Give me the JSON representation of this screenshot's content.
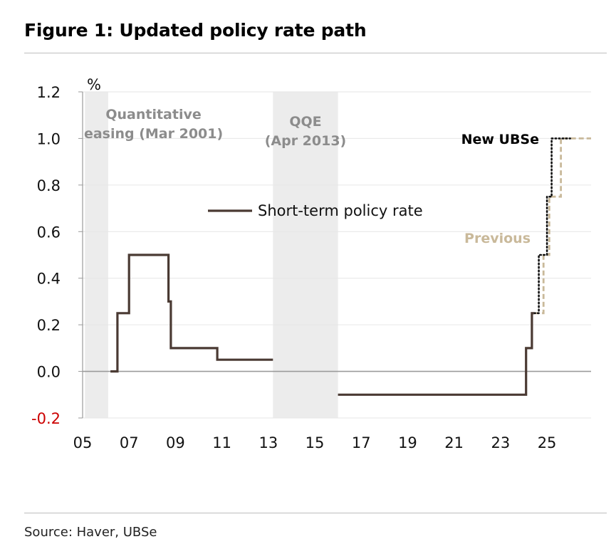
{
  "header": {
    "title": "Figure 1: Updated policy rate path"
  },
  "footer": {
    "source": "Source: Haver, UBSe"
  },
  "colors": {
    "policy": "#4a3a33",
    "new": "#111111",
    "previous": "#c9b99a",
    "shade": "#ececec",
    "negative_tick": "#cc0000"
  },
  "chart_data": {
    "type": "line",
    "title": "Figure 1: Updated policy rate path",
    "ylabel": "%",
    "xlabel": "",
    "xlim": [
      2005,
      2026.9
    ],
    "ylim": [
      -0.2,
      1.2
    ],
    "yticks": [
      1.2,
      1.0,
      0.8,
      0.6,
      0.4,
      0.2,
      0.0,
      -0.2
    ],
    "ytick_labels": [
      "1.2",
      "1.0",
      "0.8",
      "0.6",
      "0.4",
      "0.2",
      "0.0",
      "-0.2"
    ],
    "xticks": [
      2005,
      2007,
      2009,
      2011,
      2013,
      2015,
      2017,
      2019,
      2021,
      2023,
      2025
    ],
    "xtick_labels": [
      "05",
      "07",
      "09",
      "11",
      "13",
      "15",
      "17",
      "19",
      "21",
      "23",
      "25"
    ],
    "grid": true,
    "shaded_periods": [
      {
        "label_lines": [
          "Quantitative",
          "easing (Mar 2001)"
        ],
        "start": 2005.1,
        "end": 2006.1
      },
      {
        "label_lines": [
          "QQE",
          "(Apr 2013)"
        ],
        "start": 2013.2,
        "end": 2016.0
      }
    ],
    "legend": {
      "label": "Short-term policy rate",
      "position": "center"
    },
    "annotations": [
      {
        "text": "New UBSe",
        "series": "New UBSe"
      },
      {
        "text": "Previous",
        "series": "Previous"
      }
    ],
    "series": [
      {
        "name": "Short-term policy rate",
        "style": "solid",
        "x": [
          2006.2,
          2006.5,
          2006.5,
          2007.0,
          2007.0,
          2008.7,
          2008.7,
          2008.8,
          2008.8,
          2010.8,
          2010.8,
          2013.2
        ],
        "y": [
          0.0,
          0.0,
          0.25,
          0.25,
          0.5,
          0.5,
          0.3,
          0.3,
          0.1,
          0.1,
          0.05,
          0.05
        ]
      },
      {
        "name": "Short-term policy rate (negative rate period)",
        "style": "solid",
        "x": [
          2016.0,
          2024.1,
          2024.1,
          2024.35,
          2024.35,
          2024.45
        ],
        "y": [
          -0.1,
          -0.1,
          0.1,
          0.1,
          0.25,
          0.25
        ]
      },
      {
        "name": "New UBSe",
        "style": "dotted",
        "x": [
          2024.45,
          2024.65,
          2024.65,
          2025.0,
          2025.0,
          2025.2,
          2025.2,
          2025.35,
          2025.35,
          2026.0
        ],
        "y": [
          0.25,
          0.25,
          0.5,
          0.5,
          0.75,
          0.75,
          1.0,
          1.0,
          1.0,
          1.0
        ]
      },
      {
        "name": "Previous",
        "style": "dashed",
        "x": [
          2024.45,
          2024.85,
          2024.85,
          2025.1,
          2025.1,
          2025.6,
          2025.6,
          2026.9
        ],
        "y": [
          0.25,
          0.25,
          0.5,
          0.5,
          0.75,
          0.75,
          1.0,
          1.0
        ]
      }
    ]
  }
}
